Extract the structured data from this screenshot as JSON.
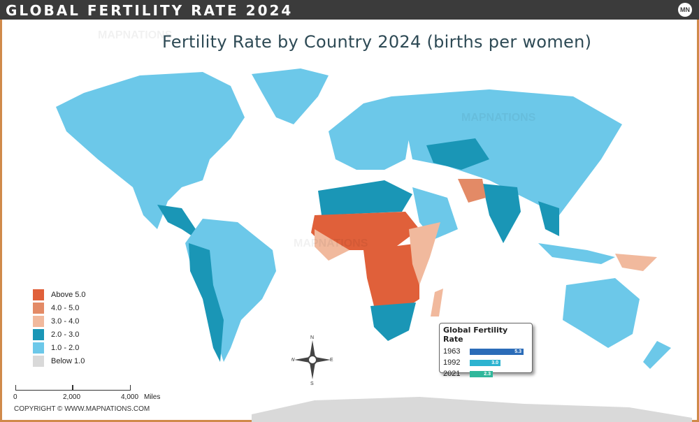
{
  "header": {
    "title": "GLOBAL FERTILITY RATE 2024",
    "logo": "MN"
  },
  "map_title": "Fertility Rate by Country 2024 (births per women)",
  "legend": [
    {
      "label": "Above 5.0",
      "color": "#e0603a"
    },
    {
      "label": "4.0 - 5.0",
      "color": "#e38a66"
    },
    {
      "label": "3.0 - 4.0",
      "color": "#f1b99d"
    },
    {
      "label": "2.0 - 3.0",
      "color": "#1a96b6"
    },
    {
      "label": "1.0 - 2.0",
      "color": "#6cc8e9"
    },
    {
      "label": "Below 1.0",
      "color": "#d9d9d9"
    }
  ],
  "scale": {
    "ticks": [
      "0",
      "2,000",
      "4,000"
    ],
    "unit": "Miles"
  },
  "compass": {
    "n": "N",
    "s": "S",
    "e": "E",
    "w": "W"
  },
  "copyright": "COPYRIGHT © WWW.MAPNATIONS.COM",
  "watermark": "MAPNATIONS",
  "global_rate": {
    "title": "Global Fertility Rate",
    "rows": [
      {
        "year": "1963",
        "value": "5.3",
        "color": "#2b6cb8",
        "fraction": 1.0
      },
      {
        "year": "1992",
        "value": "3.0",
        "color": "#2cb3d0",
        "fraction": 0.57
      },
      {
        "year": "2021",
        "value": "2.3",
        "color": "#2fb79b",
        "fraction": 0.43
      }
    ]
  }
}
